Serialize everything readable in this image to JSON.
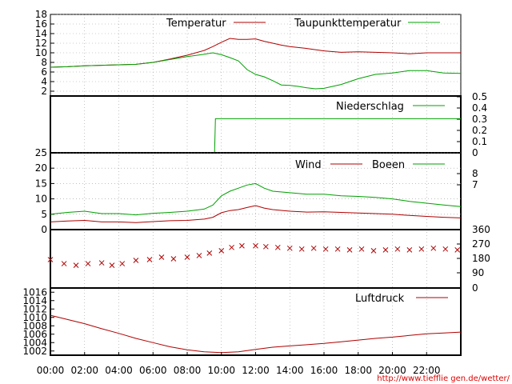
{
  "colors": {
    "red": "#b00000",
    "green": "#00a000",
    "grid": "#9a9a9a",
    "url": "#e00000"
  },
  "x_tick_labels": [
    "00:00",
    "02:00",
    "04:00",
    "06:00",
    "08:00",
    "10:00",
    "12:00",
    "14:00",
    "16:00",
    "18:00",
    "20:00",
    "22:00"
  ],
  "source_url": "http://www.tiefflie gen.de/wetter/",
  "chart_data": [
    {
      "type": "line",
      "x_unit": "hour",
      "xlim": [
        0,
        24
      ],
      "ylim": [
        1,
        18
      ],
      "y_ticks_left": [
        2,
        4,
        6,
        8,
        10,
        12,
        14,
        16,
        18
      ],
      "grid": true,
      "series": [
        {
          "name": "Temperatur",
          "color": "red",
          "points": [
            [
              0,
              7.0
            ],
            [
              1,
              7.1
            ],
            [
              2,
              7.3
            ],
            [
              3,
              7.4
            ],
            [
              4,
              7.5
            ],
            [
              5,
              7.6
            ],
            [
              6,
              8.0
            ],
            [
              7,
              8.7
            ],
            [
              8,
              9.5
            ],
            [
              9,
              10.5
            ],
            [
              9.5,
              11.3
            ],
            [
              10,
              12.2
            ],
            [
              10.5,
              13.0
            ],
            [
              11,
              12.8
            ],
            [
              11.5,
              12.8
            ],
            [
              12,
              12.9
            ],
            [
              12.5,
              12.4
            ],
            [
              13,
              12.0
            ],
            [
              13.5,
              11.6
            ],
            [
              14,
              11.3
            ],
            [
              15,
              10.9
            ],
            [
              16,
              10.4
            ],
            [
              17,
              10.1
            ],
            [
              18,
              10.2
            ],
            [
              19,
              10.1
            ],
            [
              20,
              10.0
            ],
            [
              21,
              9.8
            ],
            [
              22,
              10.0
            ],
            [
              23,
              10.0
            ],
            [
              24,
              10.0
            ]
          ]
        },
        {
          "name": "Taupunkttemperatur",
          "color": "green",
          "points": [
            [
              0,
              7.0
            ],
            [
              1,
              7.1
            ],
            [
              2,
              7.3
            ],
            [
              3,
              7.4
            ],
            [
              4,
              7.5
            ],
            [
              5,
              7.6
            ],
            [
              6,
              8.0
            ],
            [
              7,
              8.6
            ],
            [
              8,
              9.2
            ],
            [
              9,
              9.7
            ],
            [
              9.5,
              10.0
            ],
            [
              10,
              9.6
            ],
            [
              10.5,
              9.0
            ],
            [
              11,
              8.3
            ],
            [
              11.5,
              6.5
            ],
            [
              12,
              5.5
            ],
            [
              12.5,
              5.0
            ],
            [
              13,
              4.2
            ],
            [
              13.5,
              3.3
            ],
            [
              14,
              3.2
            ],
            [
              14.5,
              3.0
            ],
            [
              15,
              2.7
            ],
            [
              15.5,
              2.5
            ],
            [
              16,
              2.6
            ],
            [
              16.5,
              3.0
            ],
            [
              17,
              3.4
            ],
            [
              17.5,
              4.0
            ],
            [
              18,
              4.6
            ],
            [
              19,
              5.5
            ],
            [
              20,
              5.8
            ],
            [
              21,
              6.3
            ],
            [
              22,
              6.3
            ],
            [
              23,
              5.8
            ],
            [
              24,
              5.7
            ]
          ]
        }
      ]
    },
    {
      "type": "line",
      "x_unit": "hour",
      "xlim": [
        0,
        24
      ],
      "ylim": [
        0,
        0.5
      ],
      "y_ticks_right": [
        "0",
        "0.1",
        "0.2",
        "0.3",
        "0.4",
        "0.5"
      ],
      "grid": false,
      "series": [
        {
          "name": "Niederschlag",
          "color": "green",
          "points": [
            [
              9.6,
              0
            ],
            [
              9.65,
              0.3
            ],
            [
              24,
              0.3
            ]
          ]
        }
      ]
    },
    {
      "type": "line",
      "x_unit": "hour",
      "xlim": [
        0,
        24
      ],
      "ylim": [
        0,
        25
      ],
      "y_ticks_left": [
        0,
        5,
        10,
        15,
        20,
        25
      ],
      "y_ticks_right": [
        "7",
        "8"
      ],
      "grid": true,
      "series": [
        {
          "name": "Wind",
          "color": "red",
          "points": [
            [
              0,
              2.5
            ],
            [
              1,
              2.8
            ],
            [
              2,
              3.0
            ],
            [
              3,
              2.5
            ],
            [
              4,
              2.5
            ],
            [
              5,
              2.3
            ],
            [
              6,
              2.6
            ],
            [
              7,
              2.9
            ],
            [
              8,
              3.0
            ],
            [
              9,
              3.4
            ],
            [
              9.5,
              4.0
            ],
            [
              10,
              5.5
            ],
            [
              10.5,
              6.2
            ],
            [
              11,
              6.5
            ],
            [
              11.5,
              7.2
            ],
            [
              12,
              7.8
            ],
            [
              12.5,
              7.0
            ],
            [
              13,
              6.5
            ],
            [
              14,
              6.0
            ],
            [
              15,
              5.7
            ],
            [
              16,
              5.8
            ],
            [
              17,
              5.6
            ],
            [
              18,
              5.4
            ],
            [
              19,
              5.2
            ],
            [
              20,
              5.0
            ],
            [
              21,
              4.6
            ],
            [
              22,
              4.3
            ],
            [
              23,
              4.0
            ],
            [
              24,
              3.8
            ]
          ]
        },
        {
          "name": "Boeen",
          "color": "green",
          "points": [
            [
              0,
              5.0
            ],
            [
              1,
              5.6
            ],
            [
              2,
              6.0
            ],
            [
              3,
              5.2
            ],
            [
              4,
              5.2
            ],
            [
              5,
              4.8
            ],
            [
              6,
              5.3
            ],
            [
              7,
              5.6
            ],
            [
              8,
              6.0
            ],
            [
              9,
              6.7
            ],
            [
              9.5,
              8.0
            ],
            [
              10,
              11.0
            ],
            [
              10.5,
              12.5
            ],
            [
              11,
              13.5
            ],
            [
              11.5,
              14.5
            ],
            [
              12,
              15.0
            ],
            [
              12.5,
              13.5
            ],
            [
              13,
              12.5
            ],
            [
              14,
              12.0
            ],
            [
              15,
              11.5
            ],
            [
              16,
              11.5
            ],
            [
              17,
              11.0
            ],
            [
              18,
              10.8
            ],
            [
              19,
              10.5
            ],
            [
              20,
              10.0
            ],
            [
              21,
              9.2
            ],
            [
              22,
              8.6
            ],
            [
              23,
              8.0
            ],
            [
              24,
              7.5
            ]
          ]
        }
      ]
    },
    {
      "type": "scatter",
      "x_unit": "hour",
      "xlim": [
        0,
        24
      ],
      "ylim": [
        0,
        360
      ],
      "y_ticks_right": [
        "0",
        "90",
        "180",
        "270",
        "360"
      ],
      "grid": false,
      "series": [
        {
          "color": "red",
          "marker": "x",
          "points": [
            [
              0,
              175
            ],
            [
              0.8,
              150
            ],
            [
              1.5,
              140
            ],
            [
              2.2,
              150
            ],
            [
              3.0,
              155
            ],
            [
              3.6,
              140
            ],
            [
              4.2,
              150
            ],
            [
              5.0,
              170
            ],
            [
              5.8,
              175
            ],
            [
              6.5,
              190
            ],
            [
              7.2,
              180
            ],
            [
              8.0,
              190
            ],
            [
              8.7,
              200
            ],
            [
              9.3,
              215
            ],
            [
              10.0,
              230
            ],
            [
              10.6,
              250
            ],
            [
              11.2,
              260
            ],
            [
              12.0,
              260
            ],
            [
              12.6,
              255
            ],
            [
              13.3,
              250
            ],
            [
              14.0,
              245
            ],
            [
              14.7,
              240
            ],
            [
              15.4,
              245
            ],
            [
              16.1,
              240
            ],
            [
              16.8,
              240
            ],
            [
              17.5,
              235
            ],
            [
              18.2,
              240
            ],
            [
              18.9,
              230
            ],
            [
              19.6,
              235
            ],
            [
              20.3,
              240
            ],
            [
              21.0,
              235
            ],
            [
              21.7,
              240
            ],
            [
              22.4,
              245
            ],
            [
              23.1,
              240
            ],
            [
              23.8,
              235
            ]
          ]
        }
      ]
    },
    {
      "type": "line",
      "x_unit": "hour",
      "xlim": [
        0,
        24
      ],
      "ylim": [
        1001,
        1017
      ],
      "y_ticks_left": [
        1002,
        1004,
        1006,
        1008,
        1010,
        1012,
        1014,
        1016
      ],
      "grid": false,
      "series": [
        {
          "name": "Luftdruck",
          "color": "red",
          "points": [
            [
              0,
              1010.5
            ],
            [
              1,
              1009.5
            ],
            [
              2,
              1008.5
            ],
            [
              3,
              1007.3
            ],
            [
              4,
              1006.2
            ],
            [
              5,
              1005.0
            ],
            [
              6,
              1004.0
            ],
            [
              7,
              1003.0
            ],
            [
              8,
              1002.3
            ],
            [
              9,
              1001.8
            ],
            [
              10,
              1001.6
            ],
            [
              11,
              1001.8
            ],
            [
              12,
              1002.4
            ],
            [
              13,
              1002.9
            ],
            [
              14,
              1003.2
            ],
            [
              15,
              1003.5
            ],
            [
              16,
              1003.8
            ],
            [
              17,
              1004.2
            ],
            [
              18,
              1004.6
            ],
            [
              19,
              1005.0
            ],
            [
              20,
              1005.3
            ],
            [
              21,
              1005.7
            ],
            [
              22,
              1006.1
            ],
            [
              23,
              1006.3
            ],
            [
              24,
              1006.5
            ]
          ]
        }
      ]
    }
  ]
}
